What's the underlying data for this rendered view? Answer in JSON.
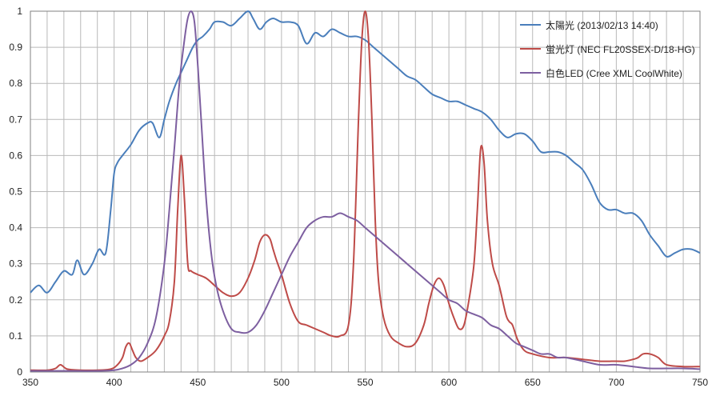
{
  "colors": {
    "background": "#ffffff",
    "grid": "#b9b9b9",
    "axis": "#808080"
  },
  "chart_data": {
    "type": "line",
    "title": "",
    "xlabel": "",
    "ylabel": "",
    "xlim": [
      350,
      750
    ],
    "ylim": [
      0,
      1
    ],
    "grid": true,
    "legend_position": "top-right",
    "x_ticks": [
      350,
      400,
      450,
      500,
      550,
      600,
      650,
      700,
      750
    ],
    "y_ticks": [
      0,
      0.1,
      0.2,
      0.3,
      0.4,
      0.5,
      0.6,
      0.7,
      0.8,
      0.9,
      1
    ],
    "x_tick_labels": [
      "350",
      "400",
      "450",
      "500",
      "550",
      "600",
      "650",
      "700",
      "750"
    ],
    "y_tick_labels": [
      "0",
      "0.1",
      "0.2",
      "0.3",
      "0.4",
      "0.5",
      "0.6",
      "0.7",
      "0.8",
      "0.9",
      "1"
    ],
    "series": [
      {
        "name": "太陽光 (2013/02/13 14:40)",
        "color": "#4a7ebb",
        "x": [
          350,
          355,
          360,
          365,
          370,
          375,
          378,
          382,
          387,
          391,
          395,
          398,
          400,
          402,
          405,
          410,
          415,
          420,
          423,
          427,
          430,
          433,
          437,
          440,
          443,
          447,
          450,
          453,
          457,
          460,
          465,
          470,
          475,
          480,
          483,
          487,
          491,
          495,
          500,
          505,
          510,
          515,
          520,
          525,
          530,
          535,
          540,
          545,
          550,
          555,
          560,
          565,
          570,
          575,
          580,
          585,
          590,
          595,
          600,
          605,
          610,
          615,
          620,
          625,
          630,
          635,
          640,
          645,
          650,
          655,
          660,
          665,
          670,
          675,
          680,
          685,
          690,
          695,
          700,
          705,
          710,
          715,
          720,
          725,
          730,
          735,
          740,
          745,
          750
        ],
        "y": [
          0.22,
          0.24,
          0.22,
          0.25,
          0.28,
          0.27,
          0.31,
          0.27,
          0.3,
          0.34,
          0.33,
          0.45,
          0.55,
          0.58,
          0.6,
          0.63,
          0.67,
          0.69,
          0.69,
          0.65,
          0.7,
          0.75,
          0.8,
          0.83,
          0.86,
          0.9,
          0.92,
          0.93,
          0.95,
          0.97,
          0.97,
          0.96,
          0.98,
          1.0,
          0.98,
          0.95,
          0.97,
          0.98,
          0.97,
          0.97,
          0.96,
          0.91,
          0.94,
          0.93,
          0.95,
          0.94,
          0.93,
          0.93,
          0.92,
          0.9,
          0.88,
          0.86,
          0.84,
          0.82,
          0.81,
          0.79,
          0.77,
          0.76,
          0.75,
          0.75,
          0.74,
          0.73,
          0.72,
          0.7,
          0.67,
          0.65,
          0.66,
          0.66,
          0.64,
          0.61,
          0.61,
          0.61,
          0.6,
          0.58,
          0.56,
          0.52,
          0.47,
          0.45,
          0.45,
          0.44,
          0.44,
          0.42,
          0.38,
          0.35,
          0.32,
          0.33,
          0.34,
          0.34,
          0.33
        ]
      },
      {
        "name": "蛍光灯 (NEC FL20SSEX-D/18-HG)",
        "color": "#be4b48",
        "x": [
          350,
          360,
          365,
          368,
          372,
          380,
          390,
          398,
          402,
          405,
          407,
          409,
          411,
          413,
          416,
          420,
          425,
          430,
          433,
          436,
          438,
          440,
          442,
          444,
          446,
          450,
          455,
          460,
          465,
          470,
          475,
          480,
          484,
          487,
          490,
          493,
          495,
          497,
          500,
          505,
          510,
          515,
          520,
          525,
          530,
          535,
          540,
          543,
          546,
          548,
          550,
          552,
          554,
          556,
          558,
          561,
          565,
          570,
          575,
          580,
          585,
          588,
          591,
          594,
          597,
          600,
          603,
          606,
          609,
          612,
          615,
          617,
          619,
          621,
          623,
          626,
          630,
          634,
          636,
          638,
          641,
          645,
          650,
          660,
          670,
          680,
          690,
          700,
          705,
          710,
          713,
          716,
          720,
          725,
          730,
          740,
          750
        ],
        "y": [
          0.005,
          0.005,
          0.01,
          0.02,
          0.008,
          0.005,
          0.005,
          0.008,
          0.02,
          0.04,
          0.07,
          0.08,
          0.06,
          0.04,
          0.03,
          0.04,
          0.06,
          0.1,
          0.14,
          0.25,
          0.45,
          0.6,
          0.48,
          0.3,
          0.28,
          0.27,
          0.26,
          0.24,
          0.22,
          0.21,
          0.22,
          0.26,
          0.31,
          0.36,
          0.38,
          0.37,
          0.34,
          0.31,
          0.27,
          0.19,
          0.14,
          0.13,
          0.12,
          0.11,
          0.1,
          0.1,
          0.13,
          0.3,
          0.7,
          0.92,
          1.0,
          0.92,
          0.7,
          0.42,
          0.25,
          0.15,
          0.1,
          0.08,
          0.07,
          0.08,
          0.13,
          0.19,
          0.24,
          0.26,
          0.24,
          0.19,
          0.15,
          0.12,
          0.13,
          0.2,
          0.3,
          0.45,
          0.62,
          0.58,
          0.42,
          0.3,
          0.24,
          0.16,
          0.14,
          0.13,
          0.09,
          0.06,
          0.05,
          0.04,
          0.04,
          0.035,
          0.03,
          0.03,
          0.03,
          0.035,
          0.04,
          0.05,
          0.05,
          0.04,
          0.02,
          0.015,
          0.015
        ]
      },
      {
        "name": "白色LED (Cree XML CoolWhite)",
        "color": "#7d5fa0",
        "x": [
          350,
          370,
          390,
          400,
          405,
          410,
          415,
          420,
          425,
          430,
          433,
          436,
          439,
          442,
          444,
          446,
          448,
          450,
          452,
          455,
          458,
          461,
          465,
          470,
          475,
          480,
          485,
          490,
          495,
          500,
          505,
          510,
          515,
          520,
          525,
          530,
          535,
          540,
          545,
          550,
          555,
          560,
          565,
          570,
          575,
          580,
          585,
          590,
          595,
          600,
          605,
          610,
          615,
          620,
          625,
          630,
          635,
          640,
          645,
          650,
          655,
          660,
          665,
          670,
          680,
          690,
          700,
          710,
          720,
          730,
          740,
          750
        ],
        "y": [
          0.003,
          0.003,
          0.003,
          0.005,
          0.01,
          0.02,
          0.04,
          0.08,
          0.15,
          0.3,
          0.45,
          0.62,
          0.8,
          0.92,
          0.98,
          1.0,
          0.97,
          0.85,
          0.7,
          0.48,
          0.33,
          0.24,
          0.17,
          0.12,
          0.11,
          0.11,
          0.13,
          0.17,
          0.22,
          0.27,
          0.32,
          0.36,
          0.4,
          0.42,
          0.43,
          0.43,
          0.44,
          0.43,
          0.42,
          0.4,
          0.38,
          0.36,
          0.34,
          0.32,
          0.3,
          0.28,
          0.26,
          0.24,
          0.22,
          0.2,
          0.19,
          0.17,
          0.16,
          0.15,
          0.13,
          0.12,
          0.1,
          0.08,
          0.07,
          0.06,
          0.05,
          0.05,
          0.04,
          0.04,
          0.03,
          0.02,
          0.02,
          0.015,
          0.01,
          0.01,
          0.01,
          0.008
        ]
      }
    ]
  }
}
